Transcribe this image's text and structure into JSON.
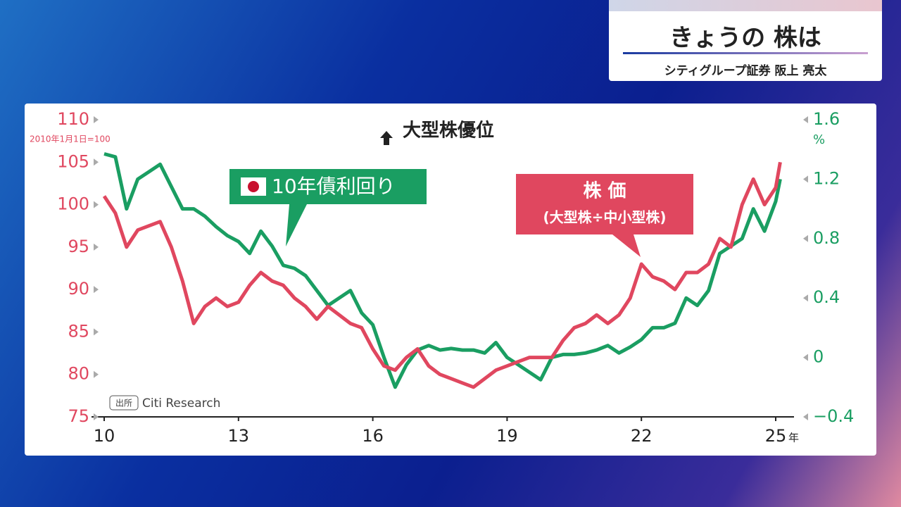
{
  "header": {
    "title": "きょうの 株は",
    "subtitle": "シティグループ証券 阪上 亮太"
  },
  "chart_data": {
    "type": "line",
    "title": "大型株優位",
    "ylabel": "2010年1月1日=100",
    "y2label": "%",
    "xlabel": "年",
    "source": {
      "label": "出所",
      "text": "Citi Research"
    },
    "x": [
      10,
      10.25,
      10.5,
      10.75,
      11,
      11.25,
      11.5,
      11.75,
      12,
      12.25,
      12.5,
      12.75,
      13,
      13.25,
      13.5,
      13.75,
      14,
      14.25,
      14.5,
      14.75,
      15,
      15.25,
      15.5,
      15.75,
      16,
      16.25,
      16.5,
      16.75,
      17,
      17.25,
      17.5,
      17.75,
      18,
      18.25,
      18.5,
      18.75,
      19,
      19.25,
      19.5,
      19.75,
      20,
      20.25,
      20.5,
      20.75,
      21,
      21.25,
      21.5,
      21.75,
      22,
      22.25,
      22.5,
      22.75,
      23,
      23.25,
      23.5,
      23.75,
      24,
      24.25,
      24.5,
      24.75,
      25,
      25.1
    ],
    "series": [
      {
        "name": "10年債利回り",
        "color": "#1a9e62",
        "axis": "y2",
        "values": [
          1.37,
          1.35,
          1.0,
          1.2,
          1.25,
          1.3,
          1.15,
          1.0,
          1.0,
          0.95,
          0.88,
          0.82,
          0.78,
          0.7,
          0.85,
          0.75,
          0.62,
          0.6,
          0.55,
          0.45,
          0.35,
          0.4,
          0.45,
          0.3,
          0.22,
          0.0,
          -0.2,
          -0.05,
          0.05,
          0.08,
          0.05,
          0.06,
          0.05,
          0.05,
          0.03,
          0.1,
          0.0,
          -0.05,
          -0.1,
          -0.15,
          0.0,
          0.02,
          0.02,
          0.03,
          0.05,
          0.08,
          0.03,
          0.07,
          0.12,
          0.2,
          0.2,
          0.23,
          0.4,
          0.35,
          0.45,
          0.7,
          0.75,
          0.8,
          1.0,
          0.85,
          1.05,
          1.2
        ]
      },
      {
        "name": "株 価",
        "note": "(大型株÷中小型株)",
        "color": "#e0475f",
        "values": [
          101,
          99,
          95,
          97,
          97.5,
          98,
          95,
          91,
          86,
          88,
          89,
          88,
          88.5,
          90.5,
          92,
          91,
          90.5,
          89,
          88,
          86.5,
          88,
          87,
          86,
          85.5,
          83,
          81,
          80.5,
          82,
          83,
          81,
          80,
          79.5,
          79,
          78.5,
          79.5,
          80.5,
          81,
          81.5,
          82,
          82,
          82,
          84,
          85.5,
          86,
          87,
          86,
          87,
          89,
          93,
          91.5,
          91,
          90,
          92,
          92,
          93,
          96,
          95,
          100,
          103,
          100,
          102,
          105
        ]
      }
    ],
    "xlim": [
      10,
      25
    ],
    "xticks": [
      10,
      13,
      16,
      19,
      22,
      25
    ],
    "ylim": [
      75,
      110
    ],
    "yticks": [
      75,
      80,
      85,
      90,
      95,
      100,
      105,
      110
    ],
    "y2lim": [
      -0.4,
      1.6
    ],
    "y2ticks": [
      {
        "value": -0.4,
        "label": "−0.4"
      },
      0,
      0.4,
      0.8,
      1.2,
      1.6
    ]
  }
}
